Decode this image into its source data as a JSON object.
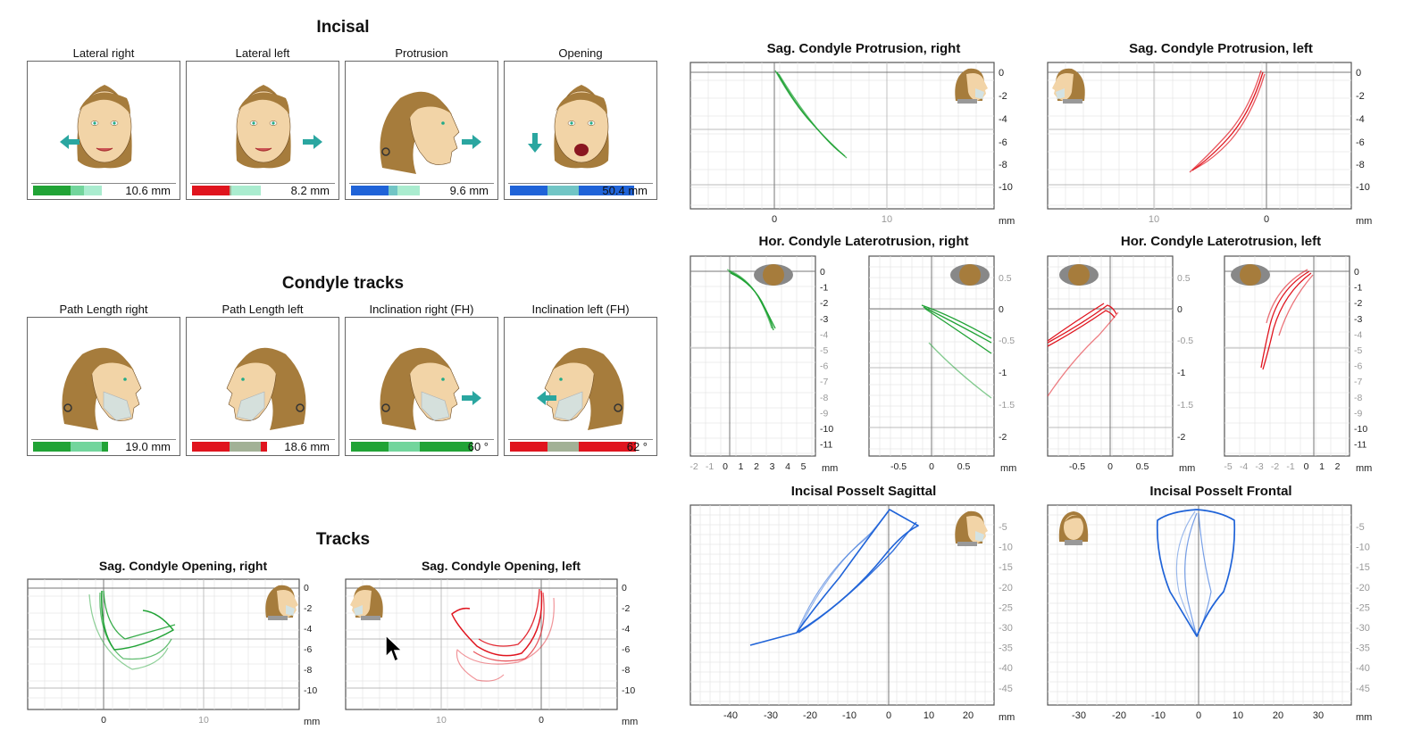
{
  "incisal": {
    "title": "Incisal",
    "cards": [
      {
        "label": "Lateral right",
        "value": "10.6 mm",
        "level": 0.35,
        "color": "#21a336",
        "view": "front",
        "arrow": "left"
      },
      {
        "label": "Lateral left",
        "value": "8.2 mm",
        "level": 0.27,
        "color": "#e0141e",
        "view": "front",
        "arrow": "right"
      },
      {
        "label": "Protrusion",
        "value": "9.6 mm",
        "level": 0.32,
        "color": "#1f63d8",
        "view": "side",
        "arrow": "right"
      },
      {
        "label": "Opening",
        "value": "50.4 mm",
        "level": 0.86,
        "color": "#1f63d8",
        "view": "front-open",
        "arrow": "down"
      }
    ]
  },
  "condyle_tracks": {
    "title": "Condyle tracks",
    "cards": [
      {
        "label": "Path Length right",
        "value": "19.0 mm",
        "level": 0.52,
        "color": "#21a336",
        "view": "side-jaw",
        "arrow": ""
      },
      {
        "label": "Path Length left",
        "value": "18.6 mm",
        "level": 0.52,
        "color": "#e0141e",
        "view": "side-jaw-left",
        "arrow": ""
      },
      {
        "label": "Inclination right (FH)",
        "value": "60 °",
        "level": 0.84,
        "color": "#21a336",
        "view": "side-jaw",
        "arrow": "right"
      },
      {
        "label": "Inclination left (FH)",
        "value": "62 °",
        "level": 0.87,
        "color": "#e0141e",
        "view": "side-jaw-left",
        "arrow": "left"
      }
    ]
  },
  "tracks": {
    "title": "Tracks",
    "charts": [
      {
        "title": "Sag. Condyle Opening, right",
        "x_ticks": [
          "0",
          "10"
        ],
        "y_ticks": [
          "0",
          "-2",
          "-4",
          "-6",
          "-8",
          "-10"
        ],
        "unit": "mm",
        "color": "#21a336",
        "head": "right"
      },
      {
        "title": "Sag. Condyle Opening, left",
        "x_ticks": [
          "10",
          "0"
        ],
        "y_ticks": [
          "0",
          "-2",
          "-4",
          "-6",
          "-8",
          "-10"
        ],
        "unit": "mm",
        "color": "#e0141e",
        "head": "left"
      }
    ]
  },
  "right_panel": {
    "sag_protrusion": [
      {
        "title": "Sag. Condyle Protrusion, right",
        "x_ticks": [
          "0",
          "10"
        ],
        "y_ticks": [
          "0",
          "-2",
          "-4",
          "-6",
          "-8",
          "-10"
        ],
        "unit": "mm",
        "color": "#21a336",
        "head": "right"
      },
      {
        "title": "Sag. Condyle Protrusion, left",
        "x_ticks": [
          "10",
          "0"
        ],
        "y_ticks": [
          "0",
          "-2",
          "-4",
          "-6",
          "-8",
          "-10"
        ],
        "unit": "mm",
        "color": "#e0141e",
        "head": "left"
      }
    ],
    "laterotrusion": [
      {
        "title": "Hor. Condyle Laterotrusion, right",
        "a": {
          "x_ticks": [
            "-2",
            "-1",
            "0",
            "1",
            "2",
            "3",
            "4",
            "5"
          ],
          "y_ticks": [
            "0",
            "-1",
            "-2",
            "-3",
            "-4",
            "-5",
            "-6",
            "-7",
            "-8",
            "-9",
            "-10",
            "-11"
          ],
          "unit": "mm"
        },
        "b": {
          "x_ticks": [
            "-0.5",
            "0",
            "0.5"
          ],
          "y_ticks": [
            "0.5",
            "0",
            "-0.5",
            "-1",
            "-1.5",
            "-2"
          ],
          "unit": "mm"
        },
        "color": "#21a336"
      },
      {
        "title": "Hor. Condyle Laterotrusion, left",
        "a": {
          "x_ticks": [
            "-0.5",
            "0",
            "0.5"
          ],
          "y_ticks": [
            "0.5",
            "0",
            "-0.5",
            "-1",
            "-1.5",
            "-2"
          ],
          "unit": "mm"
        },
        "b": {
          "x_ticks": [
            "-5",
            "-4",
            "-3",
            "-2",
            "-1",
            "0",
            "1",
            "2"
          ],
          "y_ticks": [
            "0",
            "-1",
            "-2",
            "-3",
            "-4",
            "-5",
            "-6",
            "-7",
            "-8",
            "-9",
            "-10",
            "-11"
          ],
          "unit": "mm"
        },
        "color": "#e0141e"
      }
    ],
    "posselt": [
      {
        "title": "Incisal Posselt Sagittal",
        "x_ticks": [
          "-40",
          "-30",
          "-20",
          "-10",
          "0",
          "10",
          "20"
        ],
        "y_ticks": [
          "-5",
          "-10",
          "-15",
          "-20",
          "-25",
          "-30",
          "-35",
          "-40",
          "-45"
        ],
        "unit": "mm",
        "color": "#1f63d8",
        "head": "right"
      },
      {
        "title": "Incisal Posselt Frontal",
        "x_ticks": [
          "-30",
          "-20",
          "-10",
          "0",
          "10",
          "20",
          "30"
        ],
        "y_ticks": [
          "-5",
          "-10",
          "-15",
          "-20",
          "-25",
          "-30",
          "-35",
          "-40",
          "-45"
        ],
        "unit": "mm",
        "color": "#1f63d8",
        "head": "front"
      }
    ]
  }
}
